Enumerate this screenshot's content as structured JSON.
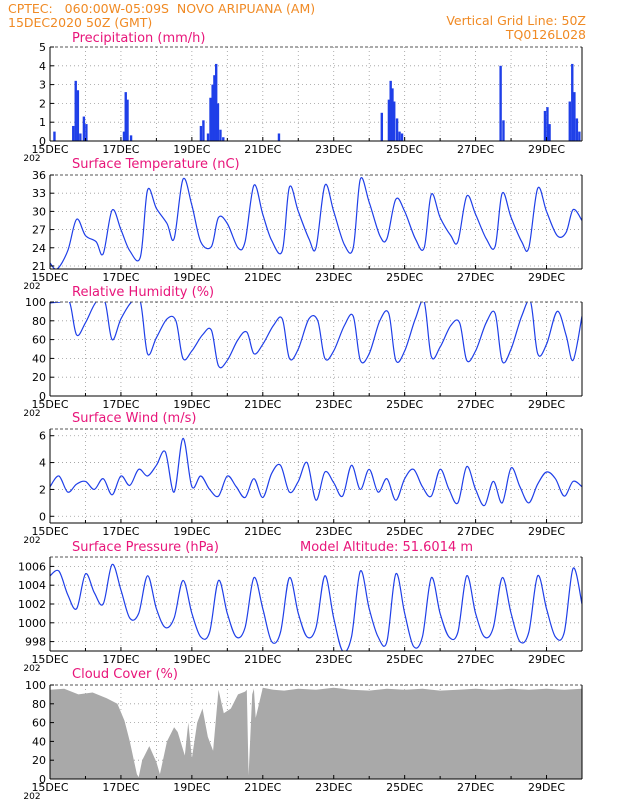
{
  "header": {
    "line1_left": "CPTEC:   060:00W-05:09S  NOVO ARIPUANA (AM)",
    "line2_left": "15DEC2020 50Z (GMT)",
    "line1_right": "Vertical Grid Line: 50Z",
    "line2_right": "TQ0126L028"
  },
  "colors": {
    "header": "#f08a24",
    "panel_title": "#e8157a",
    "series": "#1f3fe8",
    "cloud_fill": "#a9a9a9",
    "axes": "#000000"
  },
  "x_axis": {
    "days": [
      15,
      30
    ],
    "tick_labels": [
      "15DEC",
      "17DEC",
      "19DEC",
      "21DEC",
      "23DEC",
      "25DEC",
      "27DEC",
      "29DEC"
    ],
    "cut_label": "202"
  },
  "chart_data": [
    {
      "type": "bar",
      "title": "Precipitation (mm/h)",
      "ylim": [
        0,
        5
      ],
      "yticks": [
        0,
        1,
        2,
        3,
        4,
        5
      ],
      "grid": true,
      "bars": [
        [
          15.12,
          0.5
        ],
        [
          15.65,
          0.8
        ],
        [
          15.72,
          3.2
        ],
        [
          15.78,
          2.7
        ],
        [
          15.85,
          0.4
        ],
        [
          15.95,
          1.3
        ],
        [
          16.02,
          0.9
        ],
        [
          17.08,
          0.5
        ],
        [
          17.13,
          2.6
        ],
        [
          17.18,
          2.2
        ],
        [
          17.28,
          0.3
        ],
        [
          19.25,
          0.8
        ],
        [
          19.32,
          1.1
        ],
        [
          19.45,
          0.4
        ],
        [
          19.52,
          2.3
        ],
        [
          19.58,
          3.0
        ],
        [
          19.63,
          3.5
        ],
        [
          19.68,
          4.1
        ],
        [
          19.73,
          2.0
        ],
        [
          19.8,
          0.6
        ],
        [
          19.88,
          0.2
        ],
        [
          21.45,
          0.4
        ],
        [
          24.35,
          1.5
        ],
        [
          24.55,
          2.2
        ],
        [
          24.6,
          3.2
        ],
        [
          24.65,
          2.8
        ],
        [
          24.7,
          2.1
        ],
        [
          24.78,
          1.2
        ],
        [
          24.85,
          0.5
        ],
        [
          24.92,
          0.4
        ],
        [
          27.7,
          4.0
        ],
        [
          27.78,
          1.1
        ],
        [
          28.95,
          1.6
        ],
        [
          29.02,
          1.8
        ],
        [
          29.08,
          0.9
        ],
        [
          29.65,
          2.1
        ],
        [
          29.72,
          4.1
        ],
        [
          29.78,
          2.6
        ],
        [
          29.85,
          1.2
        ],
        [
          29.92,
          0.5
        ]
      ]
    },
    {
      "type": "line",
      "title": "Surface Temperature (nC)",
      "ylim": [
        20.5,
        36
      ],
      "yticks": [
        21,
        24,
        27,
        30,
        33,
        36
      ],
      "grid": true,
      "x": [
        15.0,
        15.2,
        15.5,
        15.75,
        16.0,
        16.3,
        16.5,
        16.75,
        17.0,
        17.25,
        17.55,
        17.75,
        18.0,
        18.3,
        18.5,
        18.75,
        19.0,
        19.25,
        19.55,
        19.75,
        20.0,
        20.3,
        20.5,
        20.75,
        21.0,
        21.25,
        21.55,
        21.75,
        22.0,
        22.3,
        22.5,
        22.75,
        23.0,
        23.3,
        23.55,
        23.75,
        24.0,
        24.3,
        24.5,
        24.75,
        25.0,
        25.3,
        25.55,
        25.75,
        26.0,
        26.3,
        26.5,
        26.75,
        27.0,
        27.3,
        27.55,
        27.75,
        28.0,
        28.3,
        28.5,
        28.75,
        29.0,
        29.3,
        29.55,
        29.75,
        30.0
      ],
      "y": [
        21.5,
        20.5,
        23.5,
        28.7,
        26.0,
        25.0,
        23.0,
        30.2,
        27.0,
        23.5,
        22.5,
        33.5,
        30.5,
        28.0,
        25.5,
        35.3,
        31.0,
        25.0,
        24.2,
        29.0,
        28.0,
        24.0,
        25.0,
        34.3,
        29.5,
        25.2,
        23.5,
        34.0,
        30.0,
        25.5,
        24.0,
        34.3,
        30.0,
        24.5,
        24.0,
        35.3,
        31.5,
        26.0,
        25.5,
        32.0,
        30.0,
        25.5,
        24.0,
        32.8,
        29.0,
        26.0,
        25.0,
        32.5,
        29.5,
        25.5,
        24.2,
        33.0,
        29.0,
        25.0,
        24.0,
        33.8,
        30.0,
        26.0,
        26.5,
        30.3,
        28.5
      ]
    },
    {
      "type": "line",
      "title": "Relative Humidity (%)",
      "ylim": [
        0,
        100
      ],
      "yticks": [
        0,
        20,
        40,
        60,
        80,
        100
      ],
      "grid": true,
      "x": [
        15.0,
        15.3,
        15.55,
        15.75,
        16.0,
        16.3,
        16.55,
        16.75,
        17.0,
        17.3,
        17.55,
        17.75,
        18.0,
        18.3,
        18.55,
        18.75,
        19.0,
        19.3,
        19.55,
        19.75,
        20.0,
        20.3,
        20.55,
        20.75,
        21.0,
        21.3,
        21.55,
        21.75,
        22.0,
        22.3,
        22.55,
        22.75,
        23.0,
        23.3,
        23.55,
        23.75,
        24.0,
        24.3,
        24.55,
        24.75,
        25.0,
        25.3,
        25.55,
        25.75,
        26.0,
        26.3,
        26.55,
        26.75,
        27.0,
        27.3,
        27.55,
        27.75,
        28.0,
        28.3,
        28.55,
        28.75,
        29.0,
        29.3,
        29.55,
        29.75,
        30.0
      ],
      "y": [
        99,
        100,
        100,
        65,
        78,
        100,
        100,
        60,
        82,
        100,
        100,
        45,
        62,
        82,
        80,
        40,
        48,
        65,
        70,
        32,
        38,
        60,
        68,
        45,
        55,
        75,
        82,
        40,
        50,
        82,
        80,
        40,
        48,
        75,
        85,
        38,
        45,
        80,
        88,
        38,
        48,
        82,
        100,
        42,
        52,
        75,
        78,
        38,
        48,
        78,
        88,
        37,
        50,
        85,
        100,
        45,
        55,
        90,
        65,
        38,
        85
      ]
    },
    {
      "type": "line",
      "title": "Surface Wind (m/s)",
      "ylim": [
        -0.5,
        6.5
      ],
      "yticks": [
        0,
        2,
        4,
        6
      ],
      "grid": true,
      "x": [
        15.0,
        15.25,
        15.5,
        15.75,
        16.0,
        16.25,
        16.5,
        16.75,
        17.0,
        17.25,
        17.5,
        17.75,
        18.0,
        18.25,
        18.5,
        18.75,
        19.0,
        19.25,
        19.5,
        19.75,
        20.0,
        20.25,
        20.5,
        20.75,
        21.0,
        21.25,
        21.5,
        21.75,
        22.0,
        22.25,
        22.5,
        22.75,
        23.0,
        23.25,
        23.5,
        23.75,
        24.0,
        24.25,
        24.5,
        24.75,
        25.0,
        25.25,
        25.5,
        25.75,
        26.0,
        26.25,
        26.5,
        26.75,
        27.0,
        27.25,
        27.5,
        27.75,
        28.0,
        28.25,
        28.5,
        28.75,
        29.0,
        29.25,
        29.5,
        29.75,
        30.0
      ],
      "y": [
        2.2,
        3.0,
        1.8,
        2.4,
        2.6,
        2.0,
        2.8,
        1.6,
        3.0,
        2.3,
        3.5,
        3.0,
        3.8,
        4.8,
        1.8,
        5.8,
        2.2,
        3.0,
        2.0,
        1.5,
        3.0,
        2.2,
        1.4,
        2.8,
        1.4,
        3.2,
        3.8,
        1.8,
        2.6,
        4.0,
        1.2,
        3.3,
        2.5,
        1.5,
        3.8,
        2.0,
        3.5,
        1.8,
        2.8,
        1.2,
        2.8,
        3.5,
        2.2,
        1.5,
        3.5,
        2.0,
        1.0,
        3.7,
        2.0,
        0.8,
        2.6,
        1.0,
        3.6,
        2.2,
        1.0,
        2.4,
        3.3,
        2.8,
        1.5,
        2.6,
        2.2
      ]
    },
    {
      "type": "line",
      "title": "Surface Pressure (hPa)",
      "annotation": "Model Altitude: 51.6014 m",
      "ylim": [
        997,
        1007
      ],
      "yticks": [
        998,
        1000,
        1002,
        1004,
        1006
      ],
      "grid": true,
      "x": [
        15.0,
        15.25,
        15.5,
        15.75,
        16.0,
        16.25,
        16.5,
        16.75,
        17.0,
        17.25,
        17.5,
        17.75,
        18.0,
        18.25,
        18.5,
        18.75,
        19.0,
        19.25,
        19.5,
        19.75,
        20.0,
        20.25,
        20.5,
        20.75,
        21.0,
        21.25,
        21.5,
        21.75,
        22.0,
        22.25,
        22.5,
        22.75,
        23.0,
        23.25,
        23.5,
        23.75,
        24.0,
        24.25,
        24.5,
        24.75,
        25.0,
        25.25,
        25.5,
        25.75,
        26.0,
        26.25,
        26.5,
        26.75,
        27.0,
        27.25,
        27.5,
        27.75,
        28.0,
        28.25,
        28.5,
        28.75,
        29.0,
        29.25,
        29.5,
        29.75,
        30.0
      ],
      "y": [
        1005.0,
        1005.5,
        1003.0,
        1001.5,
        1005.2,
        1003.2,
        1002.0,
        1006.2,
        1003.5,
        1000.5,
        1001.0,
        1005.0,
        1001.5,
        999.5,
        1000.5,
        1004.5,
        1001.0,
        998.5,
        999.0,
        1004.5,
        1001.0,
        998.5,
        999.5,
        1004.8,
        1001.5,
        998.0,
        999.0,
        1004.8,
        1001.0,
        998.5,
        999.5,
        1005.0,
        1000.5,
        997.0,
        998.5,
        1005.5,
        1001.5,
        998.5,
        998.0,
        1005.2,
        1001.0,
        997.5,
        998.5,
        1004.8,
        1001.0,
        998.5,
        999.0,
        1005.0,
        1001.0,
        998.5,
        999.5,
        1004.8,
        1001.0,
        998.0,
        999.0,
        1005.0,
        1001.5,
        998.5,
        999.0,
        1005.8,
        1002.0
      ]
    },
    {
      "type": "area",
      "title": "Cloud Cover (%)",
      "ylim": [
        0,
        100
      ],
      "yticks": [
        0,
        20,
        40,
        60,
        80,
        100
      ],
      "grid": true,
      "x": [
        15.0,
        15.4,
        15.8,
        16.2,
        16.6,
        16.9,
        17.1,
        17.25,
        17.45,
        17.5,
        17.6,
        17.8,
        18.0,
        18.1,
        18.3,
        18.5,
        18.6,
        18.8,
        18.9,
        19.0,
        19.15,
        19.3,
        19.45,
        19.6,
        19.75,
        19.9,
        20.1,
        20.3,
        20.5,
        20.55,
        20.6,
        20.7,
        20.75,
        20.8,
        21.0,
        21.3,
        21.6,
        22.0,
        22.5,
        23.0,
        23.5,
        24.0,
        24.5,
        25.0,
        25.5,
        26.0,
        26.5,
        27.0,
        27.5,
        28.0,
        28.5,
        29.0,
        29.5,
        30.0
      ],
      "y": [
        95,
        96,
        90,
        92,
        86,
        80,
        62,
        40,
        5,
        2,
        20,
        35,
        18,
        5,
        40,
        55,
        50,
        25,
        60,
        22,
        60,
        75,
        45,
        30,
        95,
        70,
        75,
        90,
        93,
        95,
        4,
        90,
        96,
        65,
        97,
        95,
        94,
        96,
        95,
        97,
        95,
        94,
        96,
        95,
        96,
        94,
        95,
        96,
        95,
        96,
        95,
        96,
        95,
        96
      ]
    }
  ]
}
